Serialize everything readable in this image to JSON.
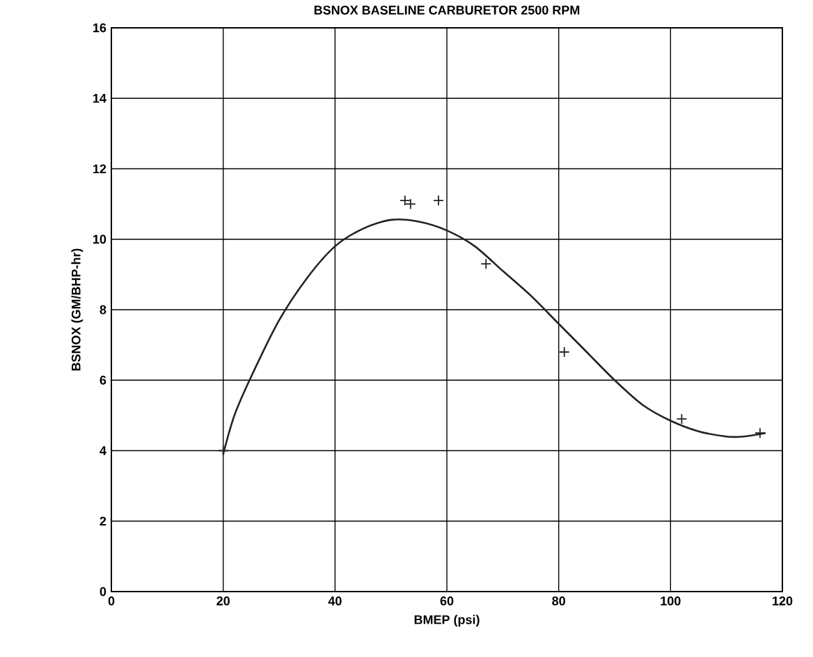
{
  "chart_data": {
    "type": "scatter",
    "title": "BSNOX BASELINE CARBURETOR   2500 RPM",
    "xlabel": "BMEP (psi)",
    "ylabel": "BSNOX (GM/BHP-hr)",
    "xlim": [
      0,
      120
    ],
    "ylim": [
      0,
      16
    ],
    "xticks": [
      0,
      20,
      40,
      60,
      80,
      100,
      120
    ],
    "yticks": [
      0,
      2,
      4,
      6,
      8,
      10,
      12,
      14,
      16
    ],
    "grid": true,
    "series": [
      {
        "type": "scatter",
        "marker": "cross",
        "color": "#222222",
        "x": [
          20,
          52.5,
          53.5,
          58.5,
          67,
          81,
          102,
          116
        ],
        "values": [
          4.0,
          11.1,
          11.0,
          11.1,
          9.3,
          6.8,
          4.9,
          4.5
        ]
      },
      {
        "type": "line",
        "marker": "none",
        "line_style": "solid",
        "color": "#222222",
        "x": [
          20,
          22,
          25,
          30,
          35,
          40,
          45,
          50,
          55,
          60,
          65,
          70,
          75,
          80,
          85,
          90,
          95,
          100,
          105,
          110,
          113,
          117
        ],
        "values": [
          3.9,
          5.0,
          6.1,
          7.7,
          8.9,
          9.8,
          10.3,
          10.55,
          10.5,
          10.25,
          9.8,
          9.1,
          8.4,
          7.6,
          6.8,
          6.0,
          5.3,
          4.85,
          4.55,
          4.4,
          4.4,
          4.5
        ]
      }
    ]
  }
}
